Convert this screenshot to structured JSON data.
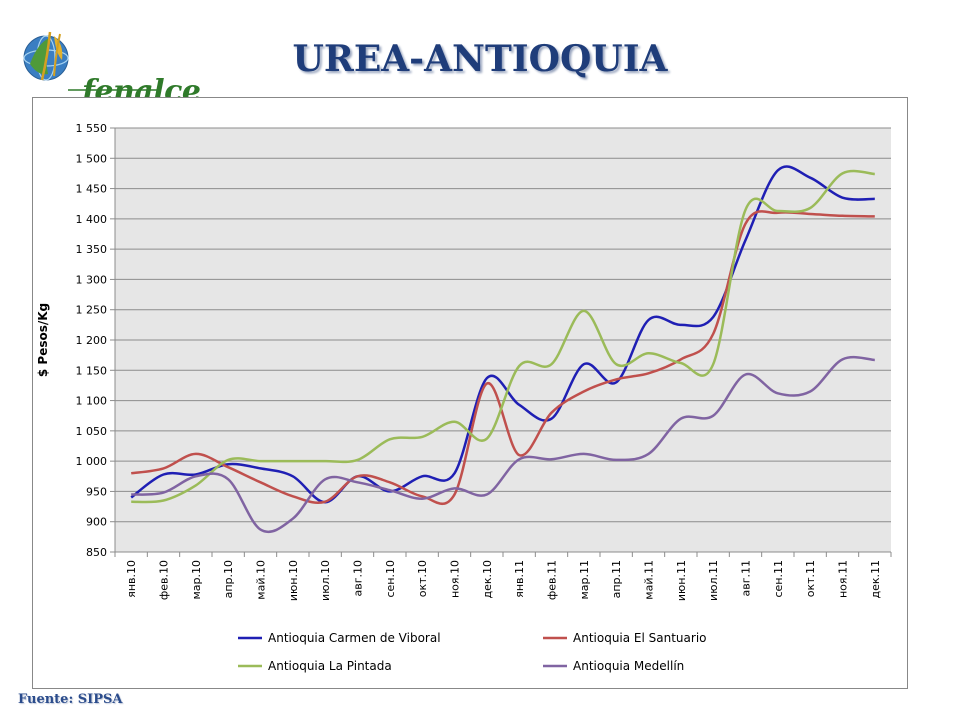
{
  "header": {
    "logo_text": "fenalce",
    "title": "UREA-ANTIOQUIA"
  },
  "footer": {
    "source": "Fuente: SIPSA"
  },
  "chart_data": {
    "type": "line",
    "title": "",
    "xlabel": "",
    "ylabel": "$ Pesos/Kg",
    "ylim": [
      850,
      1550
    ],
    "ytick_step": 50,
    "grid": true,
    "legend_position": "bottom",
    "categories": [
      "янв.10",
      "фев.10",
      "мар.10",
      "апр.10",
      "май.10",
      "июн.10",
      "июл.10",
      "авг.10",
      "сен.10",
      "окт.10",
      "ноя.10",
      "дек.10",
      "янв.11",
      "фев.11",
      "мар.11",
      "апр.11",
      "май.11",
      "июн.11",
      "июл.11",
      "авг.11",
      "сен.11",
      "окт.11",
      "ноя.11",
      "дек.11"
    ],
    "ytick_labels": [
      "850",
      "900",
      "950",
      "1 000",
      "1 050",
      "1 100",
      "1 150",
      "1 200",
      "1 250",
      "1 300",
      "1 350",
      "1 400",
      "1 450",
      "1 500",
      "1 550"
    ],
    "series": [
      {
        "name": "Antioquia Carmen de Viboral",
        "color": "#1f1fb4",
        "values": [
          940,
          978,
          978,
          995,
          988,
          975,
          932,
          975,
          950,
          975,
          980,
          1137,
          1093,
          1070,
          1160,
          1130,
          1233,
          1225,
          1238,
          1365,
          1480,
          1468,
          1435,
          1433
        ]
      },
      {
        "name": "Antioquia El Santuario",
        "color": "#c0504d",
        "values": [
          980,
          988,
          1012,
          990,
          965,
          942,
          933,
          975,
          965,
          942,
          945,
          1128,
          1010,
          1080,
          1115,
          1135,
          1145,
          1168,
          1210,
          1392,
          1410,
          1408,
          1405,
          1404
        ]
      },
      {
        "name": "Antioquia La Pintada",
        "color": "#9bbb59",
        "values": [
          933,
          935,
          960,
          1002,
          1000,
          1000,
          1000,
          1002,
          1036,
          1040,
          1065,
          1037,
          1157,
          1160,
          1248,
          1160,
          1178,
          1162,
          1160,
          1415,
          1413,
          1418,
          1475,
          1474
        ]
      },
      {
        "name": "Antioquia Medellín",
        "color": "#8064a2",
        "values": [
          945,
          948,
          975,
          970,
          887,
          905,
          970,
          965,
          952,
          938,
          955,
          945,
          1003,
          1003,
          1012,
          1002,
          1012,
          1070,
          1075,
          1143,
          1112,
          1115,
          1168,
          1167
        ]
      }
    ]
  }
}
